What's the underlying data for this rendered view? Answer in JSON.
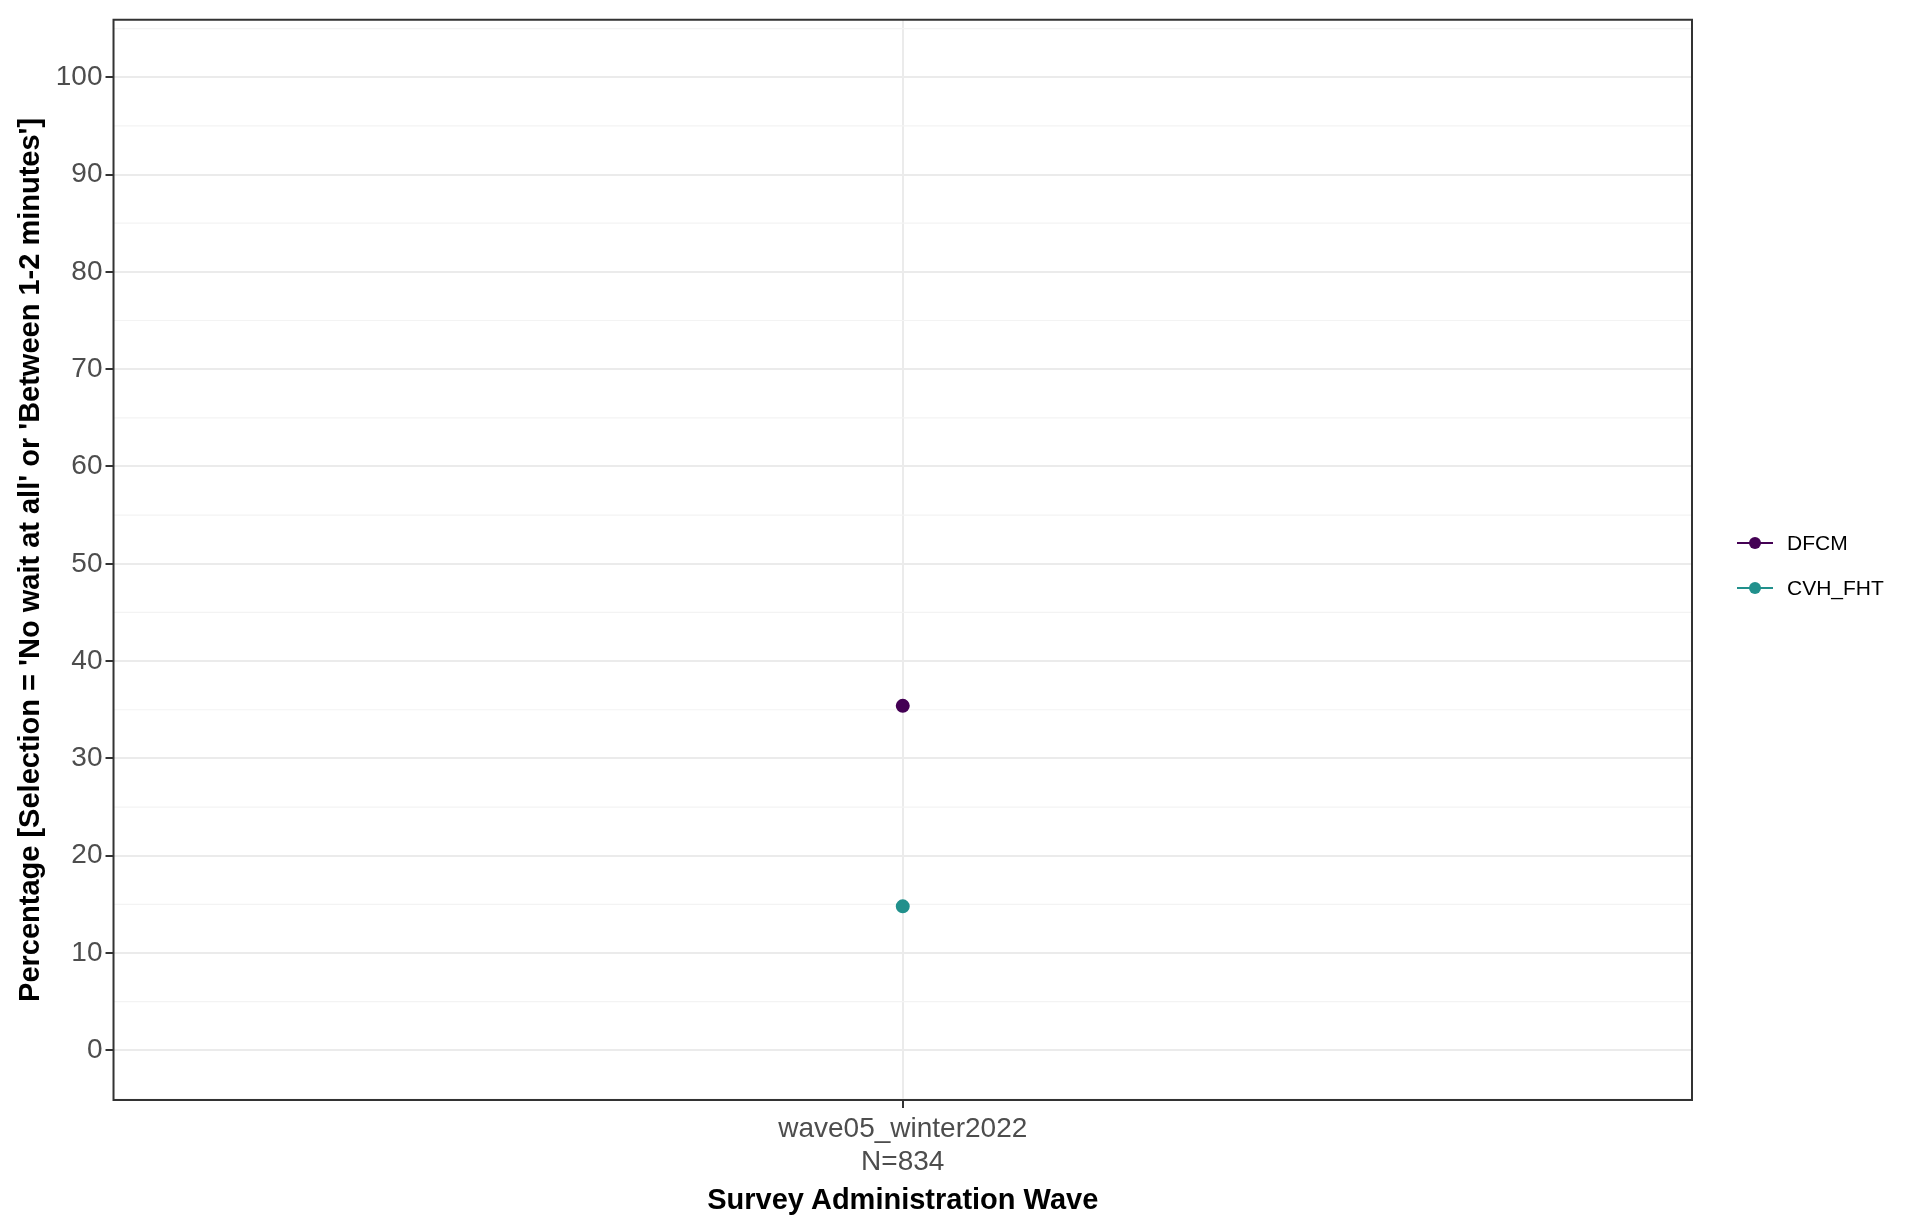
{
  "chart_data": {
    "type": "line",
    "xlabel": "Survey Administration Wave",
    "ylabel": "Percentage [Selection = 'No wait at all' or 'Between 1-2 minutes']",
    "categories": [
      "wave05_winter2022\nN=834"
    ],
    "series": [
      {
        "name": "DFCM",
        "color": "#440154",
        "values": [
          35.4
        ]
      },
      {
        "name": "CVH_FHT",
        "color": "#21908c",
        "values": [
          14.8
        ]
      }
    ],
    "ylim": [
      -5.1,
      105.9
    ],
    "yticks": [
      0,
      10,
      20,
      30,
      40,
      50,
      60,
      70,
      80,
      90,
      100
    ],
    "grid": true,
    "legend": "right",
    "marker": "circle",
    "line_style": "solid"
  }
}
